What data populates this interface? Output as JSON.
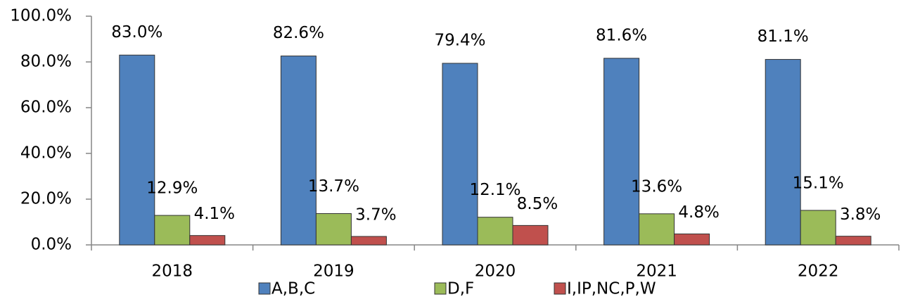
{
  "chart_data": {
    "type": "bar",
    "categories": [
      "2018",
      "2019",
      "2020",
      "2021",
      "2022"
    ],
    "series": [
      {
        "name": "A,B,C",
        "color": "#4f81bd",
        "values": [
          83.0,
          82.6,
          79.4,
          81.6,
          81.1
        ],
        "value_labels": [
          "83.0%",
          "82.6%",
          "79.4%",
          "81.6%",
          "81.1%"
        ]
      },
      {
        "name": "D,F",
        "color": "#9bbb59",
        "values": [
          12.9,
          13.7,
          12.1,
          13.6,
          15.1
        ],
        "value_labels": [
          "12.9%",
          "13.7%",
          "12.1%",
          "13.6%",
          "15.1%"
        ]
      },
      {
        "name": "I,IP,NC,P,W",
        "color": "#c0504d",
        "values": [
          4.1,
          3.7,
          8.5,
          4.8,
          3.8
        ],
        "value_labels": [
          "4.1%",
          "3.7%",
          "8.5%",
          "4.8%",
          "3.8%"
        ]
      }
    ],
    "ylim": [
      0,
      100
    ],
    "yticks": [
      {
        "value": 0,
        "label": "0.0%"
      },
      {
        "value": 20,
        "label": "20.0%"
      },
      {
        "value": 40,
        "label": "40.0%"
      },
      {
        "value": 60,
        "label": "60.0%"
      },
      {
        "value": 80,
        "label": "80.0%"
      },
      {
        "value": 100,
        "label": "100.0%"
      }
    ],
    "grid": false,
    "legend": "bottom"
  }
}
